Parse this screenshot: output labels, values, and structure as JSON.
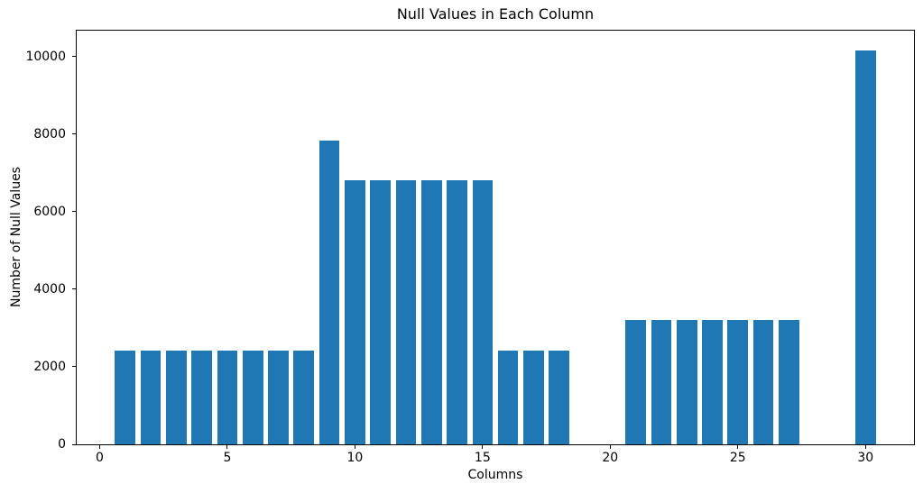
{
  "chart_data": {
    "type": "bar",
    "title": "Null Values in Each Column",
    "xlabel": "Columns",
    "ylabel": "Number of Null Values",
    "x": [
      1,
      2,
      3,
      4,
      5,
      6,
      7,
      8,
      9,
      10,
      11,
      12,
      13,
      14,
      15,
      16,
      17,
      18,
      19,
      20,
      21,
      22,
      23,
      24,
      25,
      26,
      27,
      28,
      29,
      30
    ],
    "values": [
      2420,
      2420,
      2420,
      2420,
      2420,
      2420,
      2420,
      2420,
      7840,
      6820,
      6820,
      6820,
      6820,
      6820,
      6820,
      2420,
      2420,
      2420,
      0,
      0,
      3200,
      3200,
      3200,
      3200,
      3200,
      3200,
      3200,
      0,
      0,
      10160
    ],
    "x_ticks": [
      0,
      5,
      10,
      15,
      20,
      25,
      30
    ],
    "y_ticks": [
      0,
      2000,
      4000,
      6000,
      8000,
      10000
    ],
    "xlim": [
      -0.9,
      31.9
    ],
    "ylim": [
      0,
      10670
    ],
    "bar_width": 0.8,
    "bar_color": "#1f77b4",
    "grid": false,
    "legend": null,
    "background_color": "#ffffff",
    "spine_color": "#000000"
  }
}
